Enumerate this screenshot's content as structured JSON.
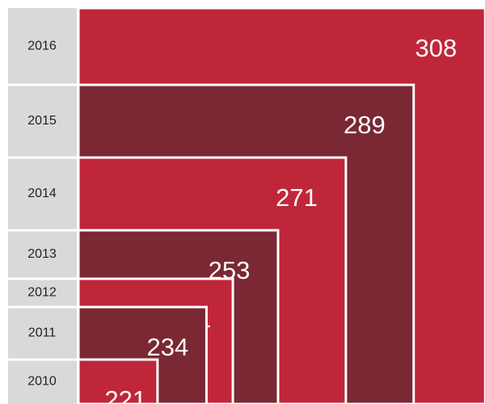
{
  "chart_data": {
    "type": "nested-bar",
    "categories": [
      "2010",
      "2011",
      "2012",
      "2013",
      "2014",
      "2015",
      "2016"
    ],
    "values": [
      221,
      234,
      241,
      253,
      271,
      289,
      308
    ],
    "colors": [
      "#c0263a",
      "#7a2834",
      "#c0263a",
      "#7a2834",
      "#c0263a",
      "#7a2834",
      "#c0263a"
    ]
  }
}
